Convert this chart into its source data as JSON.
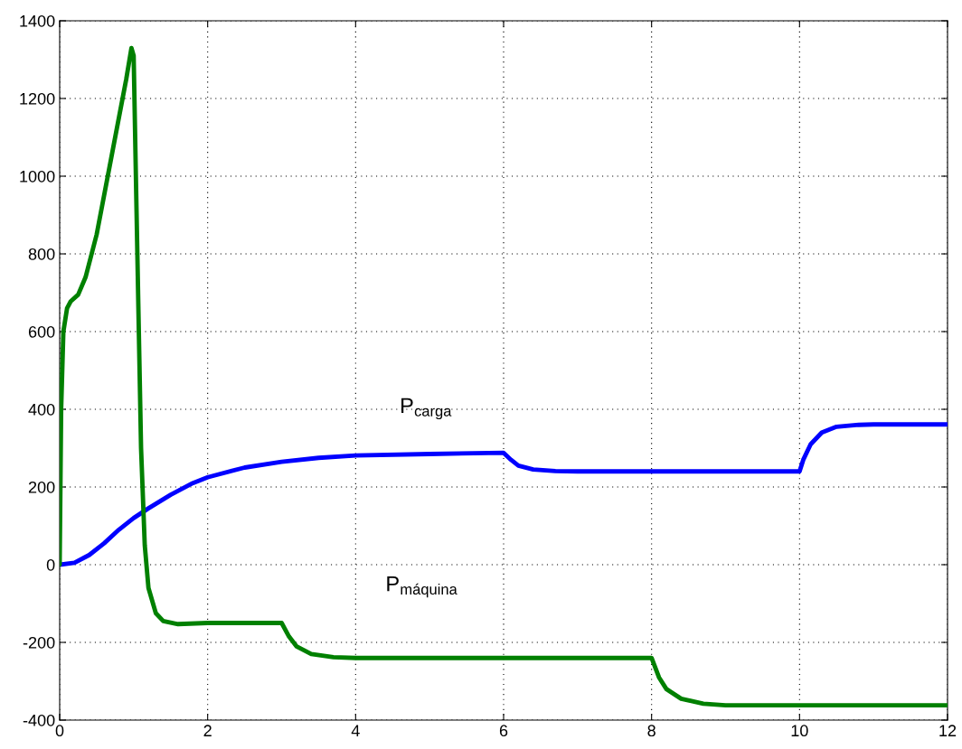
{
  "chart_data": {
    "type": "line",
    "xlim": [
      0,
      12
    ],
    "ylim": [
      -400,
      1400
    ],
    "xticks": [
      0,
      2,
      4,
      6,
      8,
      10,
      12
    ],
    "yticks": [
      -400,
      -200,
      0,
      200,
      400,
      600,
      800,
      1000,
      1200,
      1400
    ],
    "grid": true,
    "legend": false,
    "line_style": "solid",
    "marker": "none",
    "series": [
      {
        "name": "P$_{carga}$",
        "color": "#0000ff",
        "x": [
          0,
          0.2,
          0.4,
          0.6,
          0.8,
          1.0,
          1.2,
          1.5,
          1.8,
          2.0,
          2.5,
          3.0,
          3.5,
          4.0,
          5.0,
          6.0,
          6.1,
          6.2,
          6.4,
          6.7,
          7.0,
          10.0,
          10.05,
          10.15,
          10.3,
          10.5,
          10.8,
          11.0,
          12.0
        ],
        "values": [
          0,
          5,
          25,
          55,
          90,
          120,
          145,
          180,
          210,
          225,
          250,
          265,
          275,
          281,
          285,
          288,
          270,
          255,
          245,
          241,
          240,
          240,
          270,
          310,
          340,
          355,
          360,
          361,
          361
        ]
      },
      {
        "name": "P$_{máquina}$",
        "color": "#008000",
        "x": [
          0,
          0.02,
          0.05,
          0.1,
          0.15,
          0.25,
          0.35,
          0.5,
          0.7,
          0.9,
          0.97,
          1.0,
          1.03,
          1.07,
          1.1,
          1.15,
          1.2,
          1.3,
          1.4,
          1.6,
          2.0,
          3.0,
          3.1,
          3.2,
          3.4,
          3.7,
          4.0,
          8.0,
          8.1,
          8.2,
          8.4,
          8.7,
          9.0,
          12.0
        ],
        "values": [
          0,
          400,
          600,
          660,
          678,
          695,
          740,
          850,
          1050,
          1250,
          1330,
          1310,
          1000,
          600,
          300,
          50,
          -60,
          -125,
          -145,
          -153,
          -150,
          -150,
          -185,
          -210,
          -230,
          -238,
          -240,
          -240,
          -290,
          -320,
          -345,
          -358,
          -362,
          -362
        ]
      }
    ]
  }
}
